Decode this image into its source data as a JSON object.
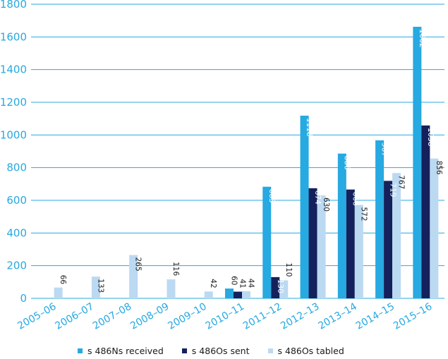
{
  "chart_data": {
    "type": "bar",
    "categories": [
      "2005–06",
      "2006–07",
      "2007–08",
      "2008–09",
      "2009–10",
      "2010–11",
      "2011–12",
      "2012–13",
      "2013–14",
      "2014–15",
      "2015–16"
    ],
    "series": [
      {
        "name": "s 486Ns received",
        "color": "#27a9e1",
        "values": [
          null,
          null,
          null,
          null,
          null,
          60,
          683,
          1118,
          886,
          967,
          1662
        ]
      },
      {
        "name": "s 486Os sent",
        "color": "#14215c",
        "values": [
          null,
          null,
          null,
          null,
          null,
          41,
          130,
          674,
          666,
          719,
          1058
        ]
      },
      {
        "name": "s 486Os tabled",
        "color": "#bcd9f2",
        "values": [
          66,
          133,
          265,
          116,
          42,
          44,
          110,
          630,
          572,
          767,
          856
        ]
      }
    ],
    "yticks": [
      0,
      200,
      400,
      600,
      800,
      1000,
      1200,
      1400,
      1600,
      1800
    ],
    "ylim": [
      0,
      1800
    ],
    "grid": true,
    "legend_position": "bottom"
  }
}
